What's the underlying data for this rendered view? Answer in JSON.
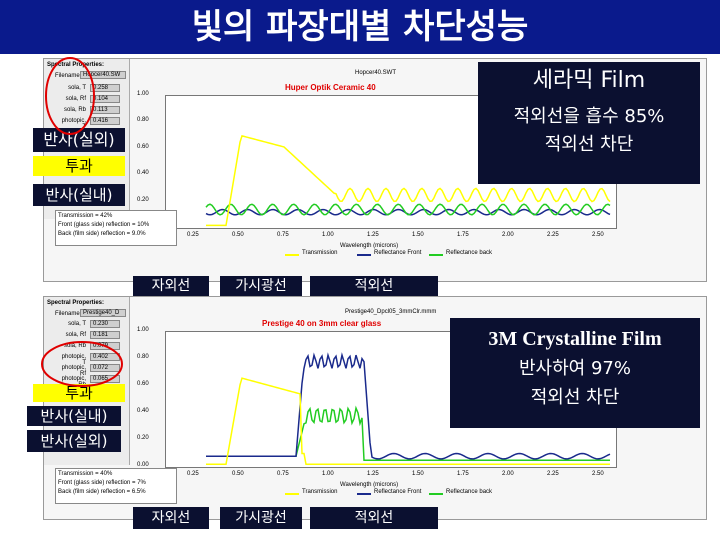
{
  "title": "빛의 파장대별 차단성능",
  "colors": {
    "title_bg": "#0a1a8c",
    "transmission": "#ffff00",
    "reflectance_front": "#1a2a8c",
    "reflectance_back": "#22cc22",
    "callout_bg": "#0b1030",
    "highlight": "#ffff00"
  },
  "top": {
    "panel_title": "Spectral Properties:",
    "filename_label": "Filename",
    "filename_value": "Hopcer40.SW",
    "props": [
      {
        "label": "sola, T",
        "value": "0.258"
      },
      {
        "label": "sola, Rf",
        "value": "0.104"
      },
      {
        "label": "sola, Rb",
        "value": "0.113"
      },
      {
        "label": "photopic, T",
        "value": "0.416"
      }
    ],
    "file_header": "Hopcer40.SWT",
    "chart_title": "Huper Optik Ceramic 40",
    "y_ticks": [
      "1.00",
      "0.80",
      "0.60",
      "0.40",
      "0.20",
      "0.00"
    ],
    "x_ticks": [
      "0.25",
      "0.50",
      "0.75",
      "1.00",
      "1.25",
      "1.50",
      "1.75",
      "2.00",
      "2.25",
      "2.50"
    ],
    "x_label": "Wavelength (microns)",
    "legend": [
      "Transmission",
      "Reflectance Front",
      "Reflectance back"
    ],
    "info": [
      "Transmission = 42%",
      "Front (glass side) reflection = 10%",
      "Back (film side) reflection = 9.0%"
    ],
    "callout_title": "세라믹 Film",
    "callout_line1": "적외선을 흡수 85%",
    "callout_line2": "적외선 차단",
    "label_reflect_out": "반사(실외)",
    "label_transmit": "투과",
    "label_reflect_in": "반사(실내)",
    "band_uv": "자외선",
    "band_visible": "가시광선",
    "band_ir": "적외선"
  },
  "bottom": {
    "panel_title": "Spectral Properties:",
    "filename_label": "Filename",
    "filename_value": "Prestige40_D",
    "props": [
      {
        "label": "sola, T",
        "value": "0.230"
      },
      {
        "label": "sola, Rf",
        "value": "0.181"
      },
      {
        "label": "sola, Rb",
        "value": "0.079"
      },
      {
        "label": "photopic, T",
        "value": "0.402"
      },
      {
        "label": "photopic, Rf",
        "value": "0.072"
      },
      {
        "label": "photopic, Rb",
        "value": "0.065"
      }
    ],
    "file_header": "Prestige40_Dpcl05_3mmClr.mmm",
    "chart_title": "Prestige 40 on 3mm clear glass",
    "y_ticks": [
      "1.00",
      "0.80",
      "0.60",
      "0.40",
      "0.20",
      "0.00"
    ],
    "x_ticks": [
      "0.25",
      "0.50",
      "0.75",
      "1.00",
      "1.25",
      "1.50",
      "1.75",
      "2.00",
      "2.25",
      "2.50"
    ],
    "x_label": "Wavelength (microns)",
    "legend": [
      "Transmission",
      "Reflectance Front",
      "Reflectance back"
    ],
    "info": [
      "Transmission = 40%",
      "Front (glass side) reflection = 7%",
      "Back (film side) reflection = 6.5%"
    ],
    "callout_title": "3M Crystalline Film",
    "callout_line1": "반사하여 97%",
    "callout_line2": "적외선 차단",
    "label_transmit": "투과",
    "label_reflect_in": "반사(실내)",
    "label_reflect_out": "반사(실외)",
    "band_uv": "자외선",
    "band_visible": "가시광선",
    "band_ir": "적외선"
  }
}
